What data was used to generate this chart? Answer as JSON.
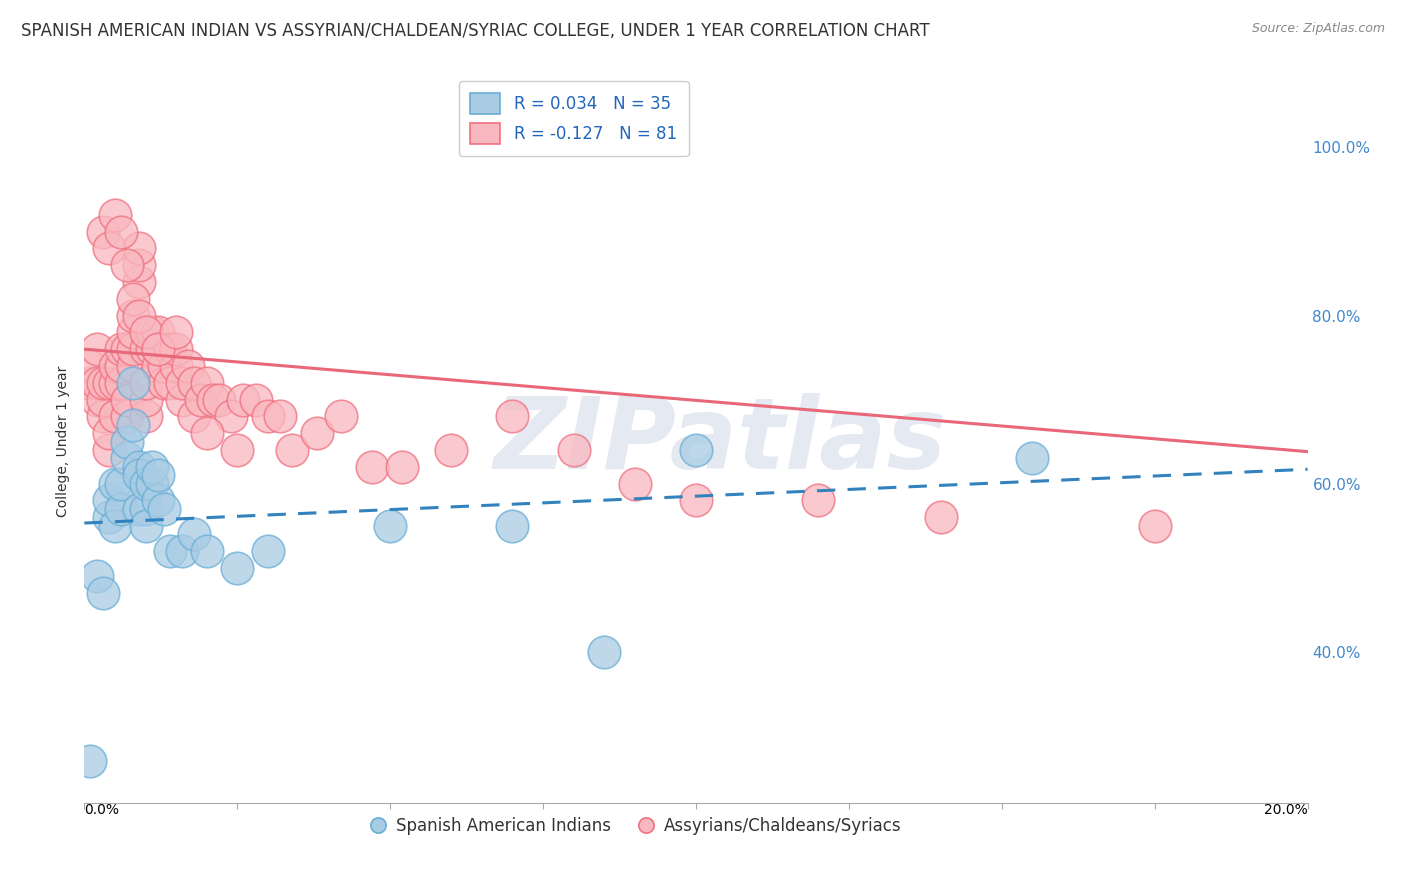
{
  "title": "SPANISH AMERICAN INDIAN VS ASSYRIAN/CHALDEAN/SYRIAC COLLEGE, UNDER 1 YEAR CORRELATION CHART",
  "source": "Source: ZipAtlas.com",
  "ylabel": "College, Under 1 year",
  "right_yticks": [
    "100.0%",
    "80.0%",
    "60.0%",
    "40.0%"
  ],
  "right_ytick_vals": [
    1.0,
    0.8,
    0.6,
    0.4
  ],
  "xlim": [
    0.0,
    0.2
  ],
  "ylim": [
    0.22,
    1.08
  ],
  "blue_color": "#a8cce4",
  "blue_edge_color": "#6aaed6",
  "pink_color": "#f9b8c0",
  "pink_edge_color": "#f07080",
  "blue_line_color": "#3282be",
  "pink_line_color": "#e8687a",
  "legend_R_blue": "R = 0.034",
  "legend_N_blue": "N = 35",
  "legend_R_pink": "R = -0.127",
  "legend_N_pink": "N = 81",
  "watermark": "ZIPatlas",
  "blue_scatter_x": [
    0.001,
    0.002,
    0.003,
    0.004,
    0.004,
    0.005,
    0.005,
    0.006,
    0.006,
    0.007,
    0.007,
    0.008,
    0.008,
    0.009,
    0.009,
    0.009,
    0.01,
    0.01,
    0.01,
    0.011,
    0.011,
    0.012,
    0.012,
    0.013,
    0.014,
    0.016,
    0.018,
    0.02,
    0.025,
    0.03,
    0.05,
    0.07,
    0.085,
    0.1,
    0.155
  ],
  "blue_scatter_y": [
    0.27,
    0.49,
    0.47,
    0.56,
    0.58,
    0.6,
    0.55,
    0.57,
    0.6,
    0.63,
    0.65,
    0.67,
    0.72,
    0.62,
    0.57,
    0.61,
    0.57,
    0.6,
    0.55,
    0.6,
    0.62,
    0.58,
    0.61,
    0.57,
    0.52,
    0.52,
    0.54,
    0.52,
    0.5,
    0.52,
    0.55,
    0.55,
    0.4,
    0.64,
    0.63
  ],
  "pink_scatter_x": [
    0.001,
    0.001,
    0.002,
    0.002,
    0.002,
    0.003,
    0.003,
    0.003,
    0.004,
    0.004,
    0.004,
    0.005,
    0.005,
    0.005,
    0.006,
    0.006,
    0.006,
    0.007,
    0.007,
    0.007,
    0.008,
    0.008,
    0.008,
    0.008,
    0.009,
    0.009,
    0.009,
    0.01,
    0.01,
    0.01,
    0.01,
    0.011,
    0.011,
    0.012,
    0.012,
    0.012,
    0.013,
    0.013,
    0.014,
    0.014,
    0.015,
    0.015,
    0.016,
    0.016,
    0.017,
    0.018,
    0.018,
    0.019,
    0.02,
    0.021,
    0.022,
    0.024,
    0.026,
    0.028,
    0.03,
    0.032,
    0.034,
    0.038,
    0.042,
    0.047,
    0.052,
    0.06,
    0.07,
    0.08,
    0.09,
    0.1,
    0.12,
    0.14,
    0.175,
    0.003,
    0.004,
    0.005,
    0.006,
    0.007,
    0.008,
    0.009,
    0.01,
    0.012,
    0.015,
    0.02,
    0.025
  ],
  "pink_scatter_y": [
    0.72,
    0.74,
    0.7,
    0.72,
    0.76,
    0.68,
    0.7,
    0.72,
    0.64,
    0.66,
    0.72,
    0.68,
    0.72,
    0.74,
    0.72,
    0.74,
    0.76,
    0.68,
    0.7,
    0.76,
    0.74,
    0.76,
    0.78,
    0.8,
    0.84,
    0.86,
    0.88,
    0.68,
    0.7,
    0.72,
    0.76,
    0.76,
    0.78,
    0.78,
    0.74,
    0.76,
    0.72,
    0.74,
    0.72,
    0.76,
    0.74,
    0.76,
    0.7,
    0.72,
    0.74,
    0.68,
    0.72,
    0.7,
    0.72,
    0.7,
    0.7,
    0.68,
    0.7,
    0.7,
    0.68,
    0.68,
    0.64,
    0.66,
    0.68,
    0.62,
    0.62,
    0.64,
    0.68,
    0.64,
    0.6,
    0.58,
    0.58,
    0.56,
    0.55,
    0.9,
    0.88,
    0.92,
    0.9,
    0.86,
    0.82,
    0.8,
    0.78,
    0.76,
    0.78,
    0.66,
    0.64
  ],
  "blue_trend_x": [
    0.0,
    0.2
  ],
  "blue_trend_y": [
    0.553,
    0.617
  ],
  "pink_trend_x": [
    0.0,
    0.2
  ],
  "pink_trend_y": [
    0.76,
    0.638
  ],
  "background_color": "#ffffff",
  "grid_color": "#cccccc",
  "title_fontsize": 12,
  "axis_label_fontsize": 10,
  "tick_fontsize": 10,
  "legend_fontsize": 12
}
